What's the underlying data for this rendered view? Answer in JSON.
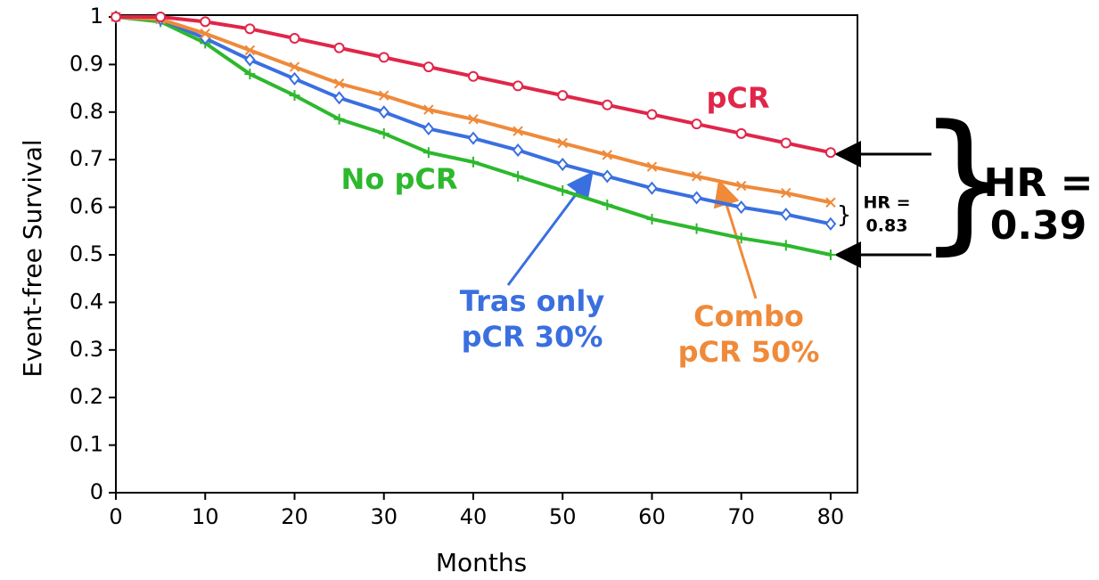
{
  "chart_data": {
    "type": "line",
    "x_label": "Months",
    "y_label": "Event-free Survival",
    "x": [
      0,
      5,
      10,
      15,
      20,
      25,
      30,
      35,
      40,
      45,
      50,
      55,
      60,
      65,
      70,
      75,
      80
    ],
    "series": [
      {
        "color": "#e0264a",
        "marker": "circle",
        "values": [
          1,
          1,
          0.99,
          0.975,
          0.955,
          0.935,
          0.915,
          0.895,
          0.875,
          0.855,
          0.835,
          0.815,
          0.795,
          0.775,
          0.755,
          0.735,
          0.715
        ]
      },
      {
        "color": "#ef8a3a",
        "marker": "x",
        "values": [
          1,
          0.995,
          0.965,
          0.93,
          0.895,
          0.86,
          0.835,
          0.805,
          0.785,
          0.76,
          0.735,
          0.71,
          0.685,
          0.665,
          0.645,
          0.63,
          0.61
        ]
      },
      {
        "color": "#3a6fe0",
        "marker": "diamond",
        "values": [
          1,
          0.995,
          0.955,
          0.91,
          0.87,
          0.83,
          0.8,
          0.765,
          0.745,
          0.72,
          0.69,
          0.665,
          0.64,
          0.62,
          0.6,
          0.585,
          0.565
        ]
      },
      {
        "color": "#2db82d",
        "marker": "plus",
        "values": [
          1,
          0.99,
          0.945,
          0.88,
          0.835,
          0.785,
          0.755,
          0.715,
          0.695,
          0.665,
          0.635,
          0.605,
          0.575,
          0.555,
          0.535,
          0.52,
          0.5
        ]
      }
    ],
    "annotations": [
      {
        "lines": [
          "pCR"
        ],
        "color": "#e0264a"
      },
      {
        "lines": [
          "No pCR"
        ],
        "color": "#2db82d"
      },
      {
        "lines": [
          "Tras only",
          "pCR 30%"
        ],
        "color": "#3a6fe0"
      },
      {
        "lines": [
          "Combo",
          "pCR 50%"
        ],
        "color": "#ef8a3a"
      },
      {
        "lines": [
          "HR =",
          "0.83"
        ],
        "color": "#000000"
      },
      {
        "lines": [
          "HR =",
          "0.39"
        ],
        "color": "#000000"
      }
    ],
    "xlim": [
      0,
      83
    ],
    "ylim": [
      0,
      1
    ],
    "xticks": [
      0,
      10,
      20,
      30,
      40,
      50,
      60,
      70,
      80
    ],
    "yticks": [
      0,
      0.1,
      0.2,
      0.3,
      0.4,
      0.5,
      0.6,
      0.7,
      0.8,
      0.9,
      1
    ],
    "grid": false
  }
}
